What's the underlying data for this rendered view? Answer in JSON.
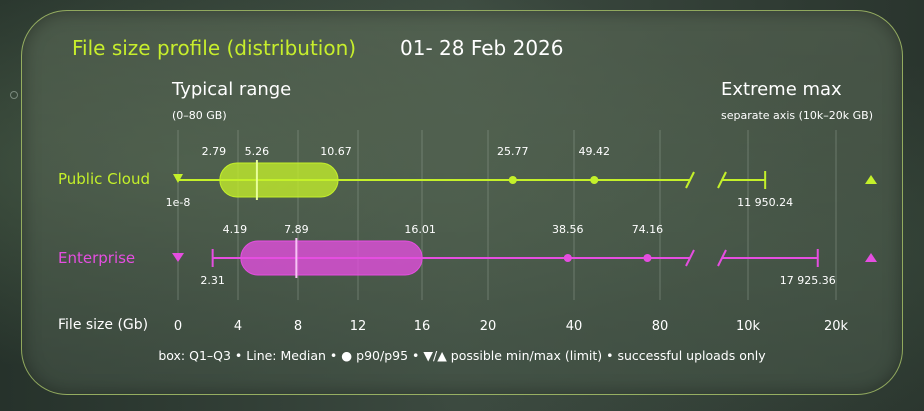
{
  "title": "File size profile (distribution)",
  "period": "01- 28 Feb 2026",
  "typical": {
    "title": "Typical range",
    "subtitle": "(0–80 GB)"
  },
  "extreme": {
    "title": "Extreme max",
    "subtitle": "separate axis (10k–20k GB)"
  },
  "axis_label": "File size (Gb)",
  "footnote": "box: Q1–Q3 • Line: Median • ● p90/p95 • ▼/▲ possible min/max (limit) • successful uploads only",
  "colors": {
    "public_cloud": "#c4f02a",
    "enterprise": "#e54ee0",
    "grid": "#9aa79a",
    "text": "#ffffff"
  },
  "chart_data": {
    "type": "box",
    "xlabel": "File size (Gb)",
    "typical_axis": {
      "range": [
        0,
        80
      ],
      "tick_values": [
        0,
        4,
        8,
        12,
        16,
        20,
        40,
        80
      ],
      "tick_labels": [
        "0",
        "4",
        "8",
        "12",
        "16",
        "20",
        "40",
        "80"
      ]
    },
    "extreme_axis": {
      "range": [
        10000,
        20000
      ],
      "tick_values": [
        10000,
        20000
      ],
      "tick_labels": [
        "10k",
        "20k"
      ]
    },
    "series": [
      {
        "name": "Public  Cloud",
        "color": "#c4f02a",
        "min": 1e-08,
        "min_label": "1e-8",
        "q1": 2.79,
        "q1_label": "2.79",
        "median": 5.26,
        "median_label": "5.26",
        "q3": 10.67,
        "q3_label": "10.67",
        "p90": 25.77,
        "p90_label": "25.77",
        "p95": 49.42,
        "p95_label": "49.42",
        "max": 11950.24,
        "max_label": "11 950.24"
      },
      {
        "name": "Enterprise",
        "color": "#e54ee0",
        "min": 2.31,
        "min_label": "2.31",
        "q1": 4.19,
        "q1_label": "4.19",
        "median": 7.89,
        "median_label": "7.89",
        "q3": 16.01,
        "q3_label": "16.01",
        "p90": 38.56,
        "p90_label": "38.56",
        "p95": 74.16,
        "p95_label": "74.16",
        "max": 17925.36,
        "max_label": "17 925.36"
      }
    ]
  }
}
